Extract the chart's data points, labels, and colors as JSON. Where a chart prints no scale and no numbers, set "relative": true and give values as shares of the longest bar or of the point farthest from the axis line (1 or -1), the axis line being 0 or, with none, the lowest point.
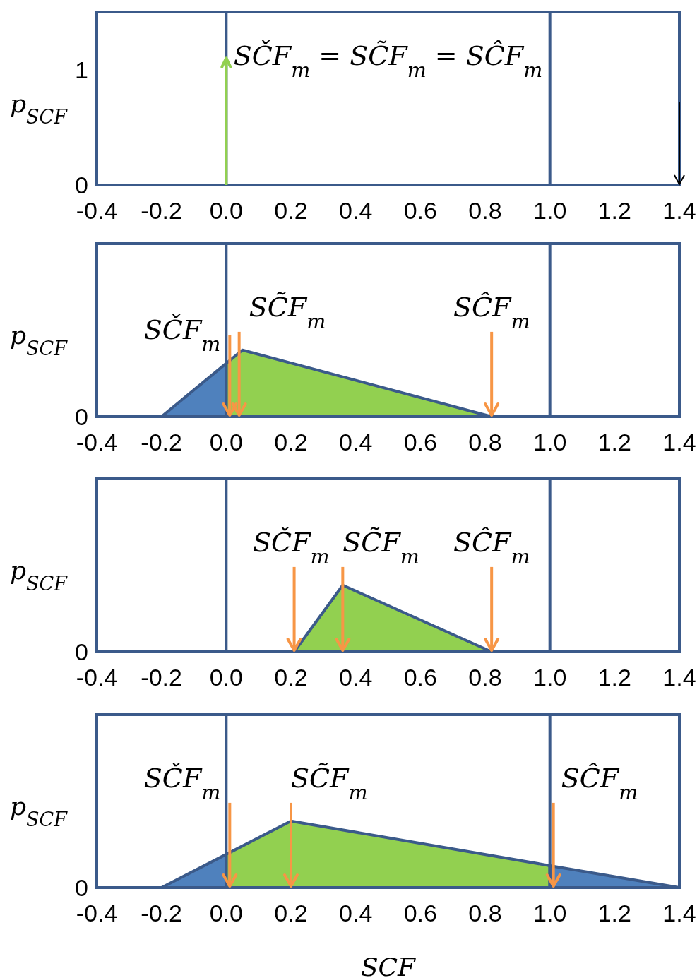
{
  "chart_data": [
    {
      "type": "line",
      "ylabel": "p$_{SCF}$",
      "xlim": [
        -0.4,
        1.4
      ],
      "xticks": [
        {
          "value": -0.4,
          "label": "-0.4"
        },
        {
          "value": -0.2,
          "label": "-0.2"
        },
        {
          "value": 0,
          "label": "0.0"
        },
        {
          "value": 0.2,
          "label": "0.2"
        },
        {
          "value": 0.4,
          "label": "0.4"
        },
        {
          "value": 0.6,
          "label": "0.6"
        },
        {
          "value": 0.8,
          "label": "0.8"
        },
        {
          "value": 1,
          "label": "1.0"
        },
        {
          "value": 1.2,
          "label": "1.2"
        },
        {
          "value": 1.4,
          "label": "1.4"
        }
      ],
      "ylim": [
        0,
        1.5
      ],
      "yticks": [
        0,
        1
      ],
      "series": [
        {
          "color": "#92d050",
          "x": [
            0,
            0
          ],
          "values": [
            0,
            1.1
          ]
        }
      ],
      "ref_lines": [
        {
          "axis": "x",
          "value": 0,
          "color": "#3b5a8a"
        },
        {
          "axis": "x",
          "value": 1,
          "color": "#3b5a8a"
        }
      ],
      "annotations": [
        "SČF$_{m}$ = SC̃F$_{m}$ = SĈF$_{m}$"
      ]
    },
    {
      "type": "area",
      "relative": true,
      "ylabel": "p$_{SCF}$",
      "xlim": [
        -0.4,
        1.4
      ],
      "xticks": [
        {
          "value": -0.4,
          "label": "-0.4"
        },
        {
          "value": -0.2,
          "label": "-0.2"
        },
        {
          "value": 0,
          "label": "0.0"
        },
        {
          "value": 0.2,
          "label": "0.2"
        },
        {
          "value": 0.4,
          "label": "0.4"
        },
        {
          "value": 0.6,
          "label": "0.6"
        },
        {
          "value": 0.8,
          "label": "0.8"
        },
        {
          "value": 1,
          "label": "1.0"
        },
        {
          "value": 1.2,
          "label": "1.2"
        },
        {
          "value": 1.4,
          "label": "1.4"
        }
      ],
      "series": [
        {
          "color": "#4f81bd",
          "x": [
            -0.2,
            0,
            0
          ],
          "values": [
            0,
            0.8,
            0
          ]
        },
        {
          "color": "#92d050",
          "x": [
            0,
            0,
            0.05,
            0.82
          ],
          "values": [
            0,
            0.8,
            1,
            0
          ]
        }
      ],
      "ref_lines": [
        {
          "axis": "x",
          "value": 0,
          "color": "#3b5a8a"
        },
        {
          "axis": "x",
          "value": 1,
          "color": "#3b5a8a"
        }
      ],
      "annotations": [
        "0",
        {
          "text": "SČF$_{m}$",
          "x": 0,
          "y": 0
        },
        {
          "text": "SC̃F$_{m}$",
          "x": 0.04,
          "y": 0
        },
        {
          "text": "SĈF$_{m}$",
          "x": 0.82,
          "y": 0
        }
      ]
    },
    {
      "type": "area",
      "relative": true,
      "ylabel": "p$_{SCF}$",
      "xlim": [
        -0.4,
        1.4
      ],
      "xticks": [
        {
          "value": -0.4,
          "label": "-0.4"
        },
        {
          "value": -0.2,
          "label": "-0.2"
        },
        {
          "value": 0,
          "label": "0.0"
        },
        {
          "value": 0.2,
          "label": "0.2"
        },
        {
          "value": 0.4,
          "label": "0.4"
        },
        {
          "value": 0.6,
          "label": "0.6"
        },
        {
          "value": 0.8,
          "label": "0.8"
        },
        {
          "value": 1,
          "label": "1.0"
        },
        {
          "value": 1.2,
          "label": "1.2"
        },
        {
          "value": 1.4,
          "label": "1.4"
        }
      ],
      "series": [
        {
          "color": "#92d050",
          "x": [
            0.21,
            0.36,
            0.82
          ],
          "values": [
            0,
            1,
            0
          ]
        }
      ],
      "ref_lines": [
        {
          "axis": "x",
          "value": 0,
          "color": "#3b5a8a"
        },
        {
          "axis": "x",
          "value": 1,
          "color": "#3b5a8a"
        }
      ],
      "annotations": [
        "0",
        {
          "text": "SČF$_{m}$",
          "x": 0.21,
          "y": 0
        },
        {
          "text": "SC̃F$_{m}$",
          "x": 0.36,
          "y": 0
        },
        {
          "text": "SĈF$_{m}$",
          "x": 0.82,
          "y": 0
        }
      ]
    },
    {
      "type": "area",
      "relative": true,
      "ylabel": "p$_{SCF}$",
      "xlabel": "SCF",
      "xlim": [
        -0.4,
        1.4
      ],
      "xticks": [
        {
          "value": -0.4,
          "label": "-0.4"
        },
        {
          "value": -0.2,
          "label": "-0.2"
        },
        {
          "value": 0,
          "label": "0.0"
        },
        {
          "value": 0.2,
          "label": "0.2"
        },
        {
          "value": 0.4,
          "label": "0.4"
        },
        {
          "value": 0.6,
          "label": "0.6"
        },
        {
          "value": 0.8,
          "label": "0.8"
        },
        {
          "value": 1,
          "label": "1.0"
        },
        {
          "value": 1.2,
          "label": "1.2"
        },
        {
          "value": 1.4,
          "label": "1.4"
        }
      ],
      "series": [
        {
          "color": "#4f81bd",
          "x": [
            -0.2,
            0,
            0
          ],
          "values": [
            0,
            0.5,
            0
          ]
        },
        {
          "color": "#92d050",
          "x": [
            0,
            0,
            0.2,
            1,
            1
          ],
          "values": [
            0,
            0.5,
            1,
            0.33,
            0
          ]
        },
        {
          "color": "#4f81bd",
          "x": [
            1,
            1,
            1.4
          ],
          "values": [
            0,
            0.33,
            0
          ]
        }
      ],
      "ref_lines": [
        {
          "axis": "x",
          "value": 0,
          "color": "#3b5a8a"
        },
        {
          "axis": "x",
          "value": 1,
          "color": "#3b5a8a"
        }
      ],
      "annotations": [
        "0",
        {
          "text": "SČF$_{m}$",
          "x": 0,
          "y": 0
        },
        {
          "text": "SC̃F$_{m}$",
          "x": 0.2,
          "y": 0
        },
        {
          "text": "SĈF$_{m}$",
          "x": 1,
          "y": 0
        }
      ]
    }
  ]
}
